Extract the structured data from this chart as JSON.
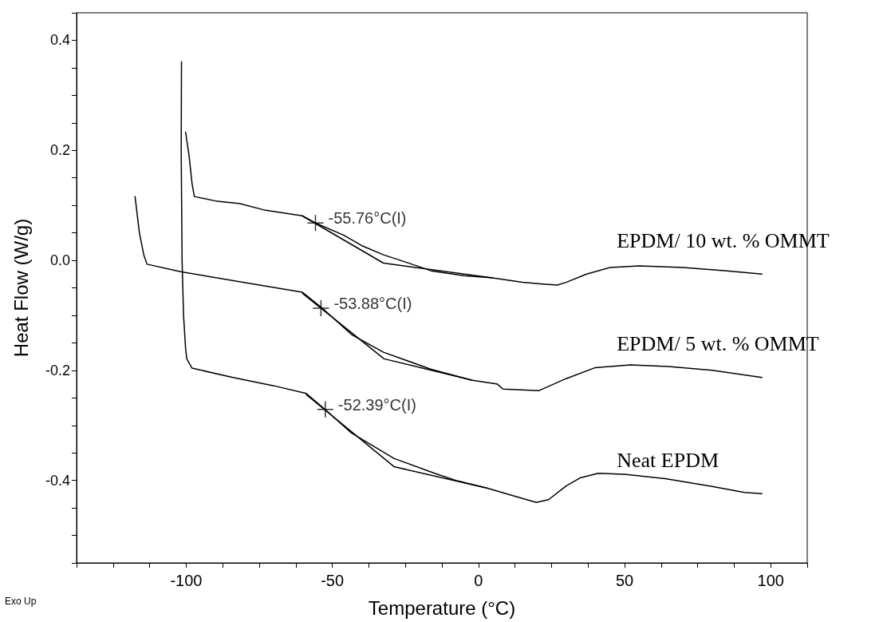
{
  "chart_data": {
    "type": "line",
    "xlabel": "Temperature (°C)",
    "ylabel": "Heat Flow (W/g)",
    "xlim": [
      -137.5,
      112.5
    ],
    "ylim": [
      -0.55,
      0.45
    ],
    "xticks": [
      {
        "value": -137.5,
        "label": null
      },
      {
        "value": -125,
        "label": null
      },
      {
        "value": -112.5,
        "label": null
      },
      -100,
      {
        "value": -87.5,
        "label": null
      },
      {
        "value": -75,
        "label": null
      },
      {
        "value": -62.5,
        "label": null
      },
      -50,
      {
        "value": -37.5,
        "label": null
      },
      {
        "value": -25,
        "label": null
      },
      {
        "value": -12.5,
        "label": null
      },
      0,
      {
        "value": 12.5,
        "label": null
      },
      {
        "value": 25,
        "label": null
      },
      {
        "value": 37.5,
        "label": null
      },
      50,
      {
        "value": 62.5,
        "label": null
      },
      {
        "value": 75,
        "label": null
      },
      {
        "value": 87.5,
        "label": null
      },
      100,
      {
        "value": 112.5,
        "label": null
      }
    ],
    "yticks": [
      {
        "value": -0.55,
        "label": null
      },
      {
        "value": -0.5,
        "label": null
      },
      {
        "value": -0.45,
        "label": null
      },
      -0.4,
      {
        "value": -0.35,
        "label": null
      },
      {
        "value": -0.3,
        "label": null
      },
      {
        "value": -0.25,
        "label": null
      },
      -0.2,
      {
        "value": -0.15,
        "label": null
      },
      {
        "value": -0.1,
        "label": null
      },
      {
        "value": -0.05,
        "label": null
      },
      {
        "value": 0,
        "label": "0.0"
      },
      {
        "value": 0.05,
        "label": null
      },
      {
        "value": 0.1,
        "label": null
      },
      {
        "value": 0.15,
        "label": null
      },
      0.2,
      {
        "value": 0.25,
        "label": null
      },
      {
        "value": 0.3,
        "label": null
      },
      {
        "value": 0.35,
        "label": null
      },
      0.4,
      {
        "value": 0.45,
        "label": null
      }
    ],
    "grid": false,
    "legend": false,
    "marker": "none",
    "line_style": "solid",
    "series": [
      {
        "name": "EPDM/ 10 wt. % OMMT",
        "color": "#000000",
        "x": [
          -100.2,
          -99,
          -98,
          -97.2,
          -90,
          -81.6,
          -72.9,
          -60.3,
          -55.8,
          -46.2,
          -40,
          -32.5,
          -25,
          -16.2,
          -5,
          4.8,
          15,
          22,
          27,
          30,
          37,
          45,
          55,
          70,
          85,
          97
        ],
        "values": [
          0.233,
          0.19,
          0.14,
          0.116,
          0.108,
          0.103,
          0.091,
          0.081,
          0.068,
          0.046,
          0.027,
          0.01,
          -0.003,
          -0.019,
          -0.028,
          -0.032,
          -0.04,
          -0.043,
          -0.045,
          -0.04,
          -0.025,
          -0.013,
          -0.01,
          -0.013,
          -0.019,
          -0.025
        ]
      },
      {
        "name": "EPDM/ 5 wt. % OMMT",
        "color": "#000000",
        "x": [
          -117.5,
          -116,
          -114.5,
          -113.4,
          -101.6,
          -79.4,
          -60.2,
          -53.4,
          -43.4,
          -32.5,
          -16.2,
          -2.1,
          6.5,
          8.4,
          20.6,
          30,
          40,
          52,
          65,
          80,
          97
        ],
        "values": [
          0.116,
          0.05,
          0.01,
          -0.007,
          -0.021,
          -0.041,
          -0.058,
          -0.087,
          -0.135,
          -0.167,
          -0.198,
          -0.218,
          -0.225,
          -0.234,
          -0.237,
          -0.215,
          -0.195,
          -0.19,
          -0.193,
          -0.2,
          -0.213
        ]
      },
      {
        "name": "Neat EPDM",
        "color": "#000000",
        "x": [
          -101.6,
          -101.7,
          -101.4,
          -100.9,
          -100.2,
          -99.8,
          -98,
          -84,
          -70,
          -58.9,
          -52.5,
          -43.4,
          -28.9,
          -15,
          -7.1,
          2.9,
          12,
          19.8,
          24,
          30,
          35,
          41,
          50,
          64,
          80,
          91,
          97
        ],
        "values": [
          0.361,
          0.2,
          0.0,
          -0.1,
          -0.16,
          -0.179,
          -0.196,
          -0.213,
          -0.228,
          -0.242,
          -0.271,
          -0.314,
          -0.36,
          -0.387,
          -0.401,
          -0.414,
          -0.428,
          -0.44,
          -0.435,
          -0.41,
          -0.395,
          -0.387,
          -0.389,
          -0.397,
          -0.411,
          -0.422,
          -0.424
        ]
      },
      {
        "color": "#000000",
        "x": [
          -60.3,
          -32.5,
          4.8
        ],
        "values": [
          0.081,
          -0.005,
          -0.032
        ]
      },
      {
        "color": "#000000",
        "x": [
          -60.2,
          -32.3,
          -2.1
        ],
        "values": [
          -0.06,
          -0.179,
          -0.218
        ]
      },
      {
        "color": "#000000",
        "x": [
          -58.9,
          -28.9,
          2.9
        ],
        "values": [
          -0.244,
          -0.375,
          -0.414
        ]
      },
      {
        "type": "scatter",
        "marker": "cross",
        "color": "#000000",
        "x": [
          -55.76,
          -53.88,
          -52.39
        ],
        "values": [
          0.068,
          -0.087,
          -0.271
        ]
      }
    ],
    "annotations": [
      {
        "text": "-55.76°C(I)",
        "x": -55.76,
        "y": 0.068
      },
      {
        "text": "-53.88°C(I)",
        "x": -53.88,
        "y": -0.087
      },
      {
        "text": "-52.39°C(I)",
        "x": -52.39,
        "y": -0.271
      },
      "Exo Up"
    ]
  }
}
